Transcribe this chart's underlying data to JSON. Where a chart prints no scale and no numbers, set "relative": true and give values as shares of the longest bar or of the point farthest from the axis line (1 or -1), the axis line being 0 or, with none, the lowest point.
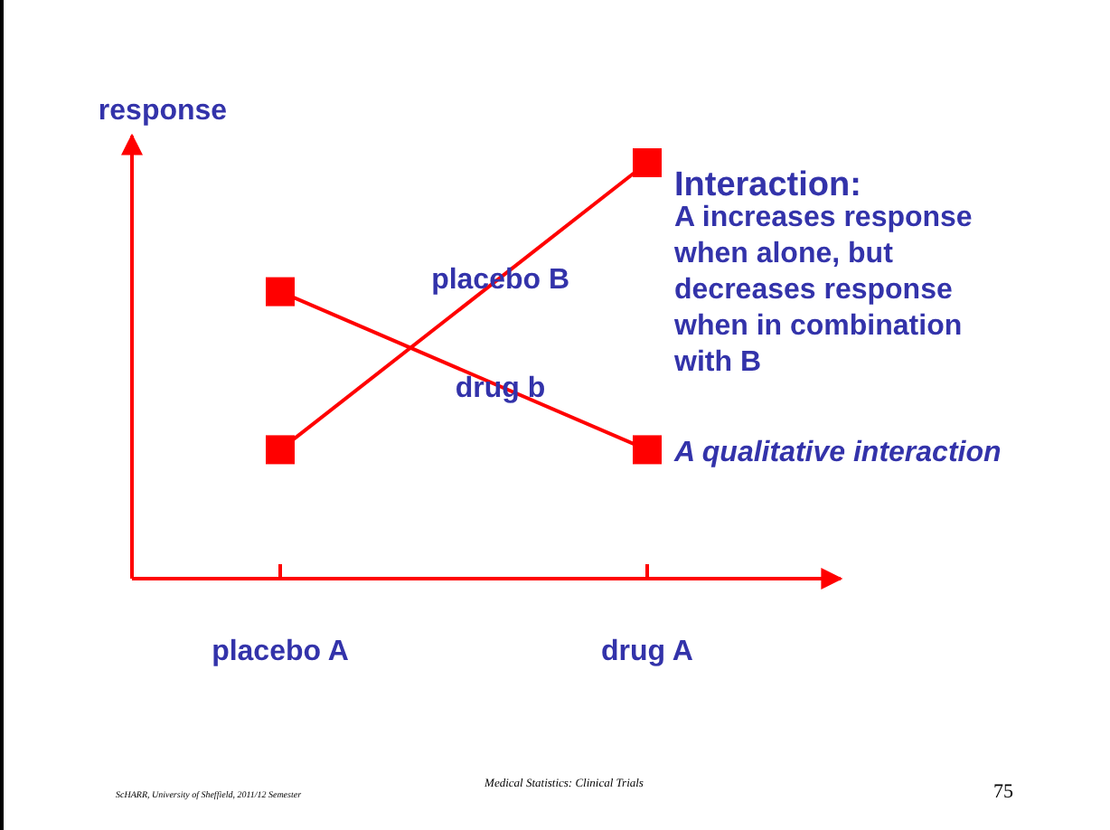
{
  "chart_data": {
    "type": "line",
    "title": "Interaction:",
    "ylabel": "response",
    "categories": [
      "placebo A",
      "drug A"
    ],
    "relative": true,
    "marker": "square",
    "line_style": "solid",
    "series": [
      {
        "name": "placebo B",
        "color": "#ff0000",
        "values": [
          0.31,
          1
        ]
      },
      {
        "name": "drug b",
        "color": "#ff0000",
        "values": [
          0.69,
          0.31
        ]
      }
    ],
    "annotations": [
      "A increases response when alone, but decreases response when in combination with B",
      "A qualitative interaction",
      "ScHARR, University of Sheffield, 2011/12 Semester",
      "Medical Statistics: Clinical Trials",
      "75"
    ]
  }
}
